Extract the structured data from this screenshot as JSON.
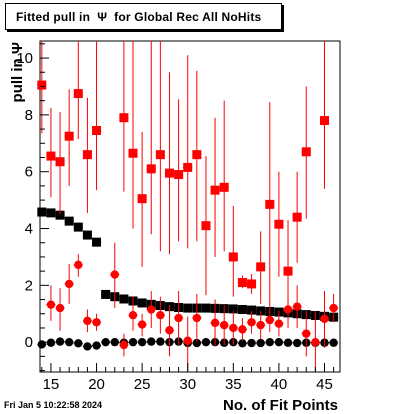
{
  "title": "Fitted pull in  Ψ  for Global Rec All NoHits",
  "timestamp": "Fri Jan  5 10:22:58 2024",
  "chart_data": {
    "type": "scatter",
    "xlabel": "No. of Fit Points",
    "ylabel": "pull in  Ψ",
    "xlim": [
      13.8,
      46.7
    ],
    "ylim": [
      -1.05,
      10.6
    ],
    "x_ticks": [
      15,
      20,
      25,
      30,
      35,
      40,
      45
    ],
    "y_ticks": [
      0,
      2,
      4,
      6,
      8,
      10
    ],
    "grid": false,
    "colors": {
      "sigma": "#000000",
      "mean_high": "#ff0000",
      "mean": "#ff0000",
      "errorbar": "#ff0000"
    },
    "series": [
      {
        "marker": "square",
        "color": "#000000",
        "points": [
          [
            14,
            4.58
          ],
          [
            15,
            4.55
          ],
          [
            16,
            4.47
          ],
          [
            17,
            4.26
          ],
          [
            18,
            4.05
          ],
          [
            19,
            3.77
          ],
          [
            20,
            3.52
          ],
          [
            21,
            1.68
          ],
          [
            22,
            1.6
          ],
          [
            23,
            1.52
          ],
          [
            24,
            1.45
          ],
          [
            25,
            1.38
          ],
          [
            26,
            1.33
          ],
          [
            27,
            1.29
          ],
          [
            28,
            1.25
          ],
          [
            29,
            1.22
          ],
          [
            30,
            1.2
          ],
          [
            31,
            1.2
          ],
          [
            32,
            1.2
          ],
          [
            33,
            1.19
          ],
          [
            34,
            1.18
          ],
          [
            35,
            1.17
          ],
          [
            36,
            1.15
          ],
          [
            37,
            1.13
          ],
          [
            38,
            1.1
          ],
          [
            39,
            1.08
          ],
          [
            40,
            1.06
          ],
          [
            41,
            1.03
          ],
          [
            42,
            1.0
          ],
          [
            43,
            0.97
          ],
          [
            44,
            0.94
          ],
          [
            45,
            0.91
          ],
          [
            46,
            0.88
          ]
        ]
      },
      {
        "marker": "circle",
        "color": "#000000",
        "points": [
          [
            14,
            -0.08
          ],
          [
            15,
            -0.02
          ],
          [
            16,
            0.02
          ],
          [
            17,
            0.0
          ],
          [
            18,
            -0.04
          ],
          [
            19,
            -0.15
          ],
          [
            20,
            -0.12
          ],
          [
            21,
            0.0
          ],
          [
            22,
            0.0
          ],
          [
            23,
            -0.02
          ],
          [
            24,
            0.0
          ],
          [
            25,
            0.0
          ],
          [
            26,
            0.02
          ],
          [
            27,
            0.02
          ],
          [
            28,
            0.0
          ],
          [
            29,
            0.02
          ],
          [
            30,
            -0.03
          ],
          [
            31,
            -0.03
          ],
          [
            32,
            0.0
          ],
          [
            33,
            0.0
          ],
          [
            34,
            -0.02
          ],
          [
            35,
            0.0
          ],
          [
            36,
            -0.04
          ],
          [
            37,
            -0.03
          ],
          [
            38,
            -0.03
          ],
          [
            39,
            0.0
          ],
          [
            40,
            0.0
          ],
          [
            41,
            -0.02
          ],
          [
            42,
            -0.03
          ],
          [
            43,
            -0.02
          ],
          [
            44,
            -0.02
          ],
          [
            45,
            -0.02
          ],
          [
            46,
            -0.02
          ]
        ]
      },
      {
        "marker": "square",
        "color": "#ff0000",
        "points": [
          [
            14,
            9.05,
            10.6,
            7.35
          ],
          [
            15,
            6.55,
            8.25,
            5.1
          ],
          [
            16,
            6.35,
            8.1,
            4.5
          ],
          [
            17,
            7.25,
            8.9,
            5.5
          ],
          [
            18,
            8.75,
            10.6,
            7.15
          ],
          [
            19,
            6.6,
            8.6,
            4.55
          ],
          [
            20,
            7.45,
            10.6,
            5.35
          ],
          [
            23,
            7.9,
            10.6,
            5.3
          ],
          [
            24,
            6.65,
            10.6,
            4.0
          ],
          [
            25,
            5.05,
            7.4,
            2.65
          ],
          [
            26,
            6.1,
            10.6,
            3.8
          ],
          [
            27,
            6.6,
            10.6,
            3.2
          ],
          [
            28,
            5.95,
            9.5,
            3.1
          ],
          [
            29,
            5.9,
            8.55,
            3.55
          ],
          [
            30,
            6.15,
            10.1,
            3.3
          ],
          [
            31,
            6.6,
            9.55,
            3.55
          ],
          [
            32,
            4.1,
            6.55,
            1.65
          ],
          [
            33,
            5.35,
            7.9,
            3.0
          ],
          [
            34,
            5.45,
            8.5,
            3.2
          ],
          [
            35,
            3.0,
            4.8,
            1.6
          ],
          [
            36,
            2.1,
            2.35,
            1.9
          ],
          [
            37,
            2.05,
            2.4,
            1.7
          ],
          [
            38,
            2.65,
            3.9,
            1.35
          ],
          [
            39,
            4.85,
            8.45,
            1.2
          ],
          [
            40,
            4.15,
            6.0,
            2.3
          ],
          [
            41,
            2.5,
            4.3,
            0.8
          ],
          [
            42,
            4.4,
            6.0,
            2.8
          ],
          [
            43,
            6.7,
            9.0,
            4.35
          ],
          [
            45,
            7.8,
            10.6,
            5.4
          ]
        ]
      },
      {
        "marker": "circle",
        "color": "#ff0000",
        "points": [
          [
            15,
            1.32,
            2.0,
            0.75
          ],
          [
            16,
            1.2,
            1.9,
            0.4
          ],
          [
            17,
            2.05,
            2.75,
            1.35
          ],
          [
            18,
            2.72,
            3.1,
            2.3
          ],
          [
            19,
            0.75,
            1.15,
            0.35
          ],
          [
            20,
            0.7,
            1.0,
            0.4
          ],
          [
            22,
            2.38,
            3.5,
            1.2
          ],
          [
            23,
            -0.1,
            0.3,
            -0.5
          ],
          [
            24,
            0.95,
            1.6,
            0.4
          ],
          [
            25,
            0.62,
            1.0,
            0.2
          ],
          [
            26,
            1.15,
            1.8,
            0.5
          ],
          [
            27,
            0.95,
            1.6,
            0.3
          ],
          [
            28,
            0.42,
            1.3,
            -0.5
          ],
          [
            29,
            0.85,
            1.8,
            -0.1
          ],
          [
            30,
            0.05,
            0.9,
            -1.05
          ],
          [
            31,
            0.85,
            1.7,
            0.0
          ],
          [
            33,
            0.68,
            1.5,
            -0.15
          ],
          [
            34,
            0.6,
            1.3,
            -0.1
          ],
          [
            35,
            0.5,
            1.1,
            -0.1
          ],
          [
            36,
            0.45,
            0.85,
            0.05
          ],
          [
            37,
            0.7,
            1.1,
            0.3
          ],
          [
            38,
            0.6,
            1.1,
            0.1
          ],
          [
            39,
            0.78,
            1.2,
            0.35
          ],
          [
            40,
            0.65,
            1.1,
            0.2
          ],
          [
            41,
            1.15,
            1.75,
            0.5
          ],
          [
            42,
            1.25,
            2.0,
            0.5
          ],
          [
            43,
            0.3,
            1.1,
            -0.5
          ],
          [
            44,
            0.0,
            1.1,
            -1.05
          ],
          [
            45,
            0.82,
            1.8,
            -0.2
          ],
          [
            46,
            1.2,
            1.7,
            0.7
          ]
        ]
      }
    ]
  }
}
